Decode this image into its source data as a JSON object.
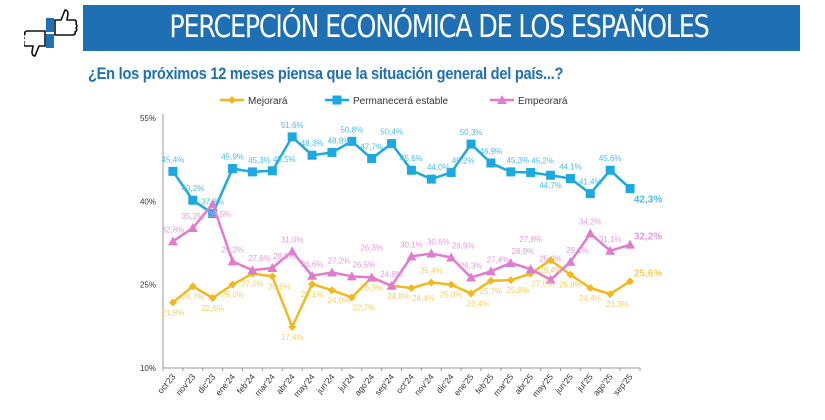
{
  "header": {
    "title": "PERCEPCIÓN ECONÓMICA DE LOS ESPAÑOLES",
    "subtitle": "¿En los próximos 12 meses piensa que la situación general del país...?"
  },
  "chart_data": {
    "type": "line",
    "title": "",
    "xlabel": "",
    "ylabel": "",
    "ylim": [
      10,
      55
    ],
    "yticks": [
      "10%",
      "25%",
      "40%",
      "55%"
    ],
    "yticks_values": [
      10,
      25,
      40,
      55
    ],
    "legend": "top",
    "grid": false,
    "categories": [
      "oct'23",
      "nov'23",
      "dic'23",
      "ene'24",
      "feb'24",
      "mar'24",
      "abr'24",
      "may'24",
      "jun'24",
      "jul'24",
      "ago'24",
      "sep'24",
      "oct'24",
      "nov'24",
      "dic'24",
      "ene'25",
      "feb'25",
      "mar'25",
      "abr'25",
      "may'25",
      "jun'25",
      "jul'25",
      "ago'25",
      "sep'25"
    ],
    "series": [
      {
        "name": "Mejorará",
        "color": "#f2b81c",
        "label_color": "#f0d060",
        "marker": "diamond",
        "values": [
          21.8,
          24.7,
          22.6,
          25.0,
          27.0,
          26.5,
          17.4,
          25.1,
          24.0,
          22.7,
          26.3,
          24.8,
          24.4,
          25.4,
          25.0,
          23.4,
          25.7,
          25.8,
          27.0,
          29.4,
          26.8,
          24.4,
          23.3,
          25.6
        ]
      },
      {
        "name": "Permanecerá estable",
        "color": "#1aa9e0",
        "label_color": "#4dbde6",
        "marker": "square",
        "values": [
          45.4,
          40.2,
          37.8,
          45.9,
          45.3,
          45.5,
          51.6,
          48.3,
          48.8,
          50.8,
          47.7,
          50.4,
          45.6,
          44.0,
          45.2,
          50.3,
          46.9,
          45.3,
          45.2,
          44.7,
          44.1,
          41.4,
          45.6,
          42.3
        ]
      },
      {
        "name": "Empeorará",
        "color": "#e07bd0",
        "label_color": "#e79ad9",
        "marker": "triangle",
        "values": [
          32.8,
          35.2,
          39.5,
          29.2,
          27.6,
          28.0,
          31.0,
          26.6,
          27.2,
          26.5,
          26.3,
          24.8,
          30.1,
          30.6,
          29.9,
          26.3,
          27.4,
          28.9,
          27.8,
          25.9,
          29.1,
          34.2,
          31.1,
          32.2
        ]
      }
    ]
  }
}
